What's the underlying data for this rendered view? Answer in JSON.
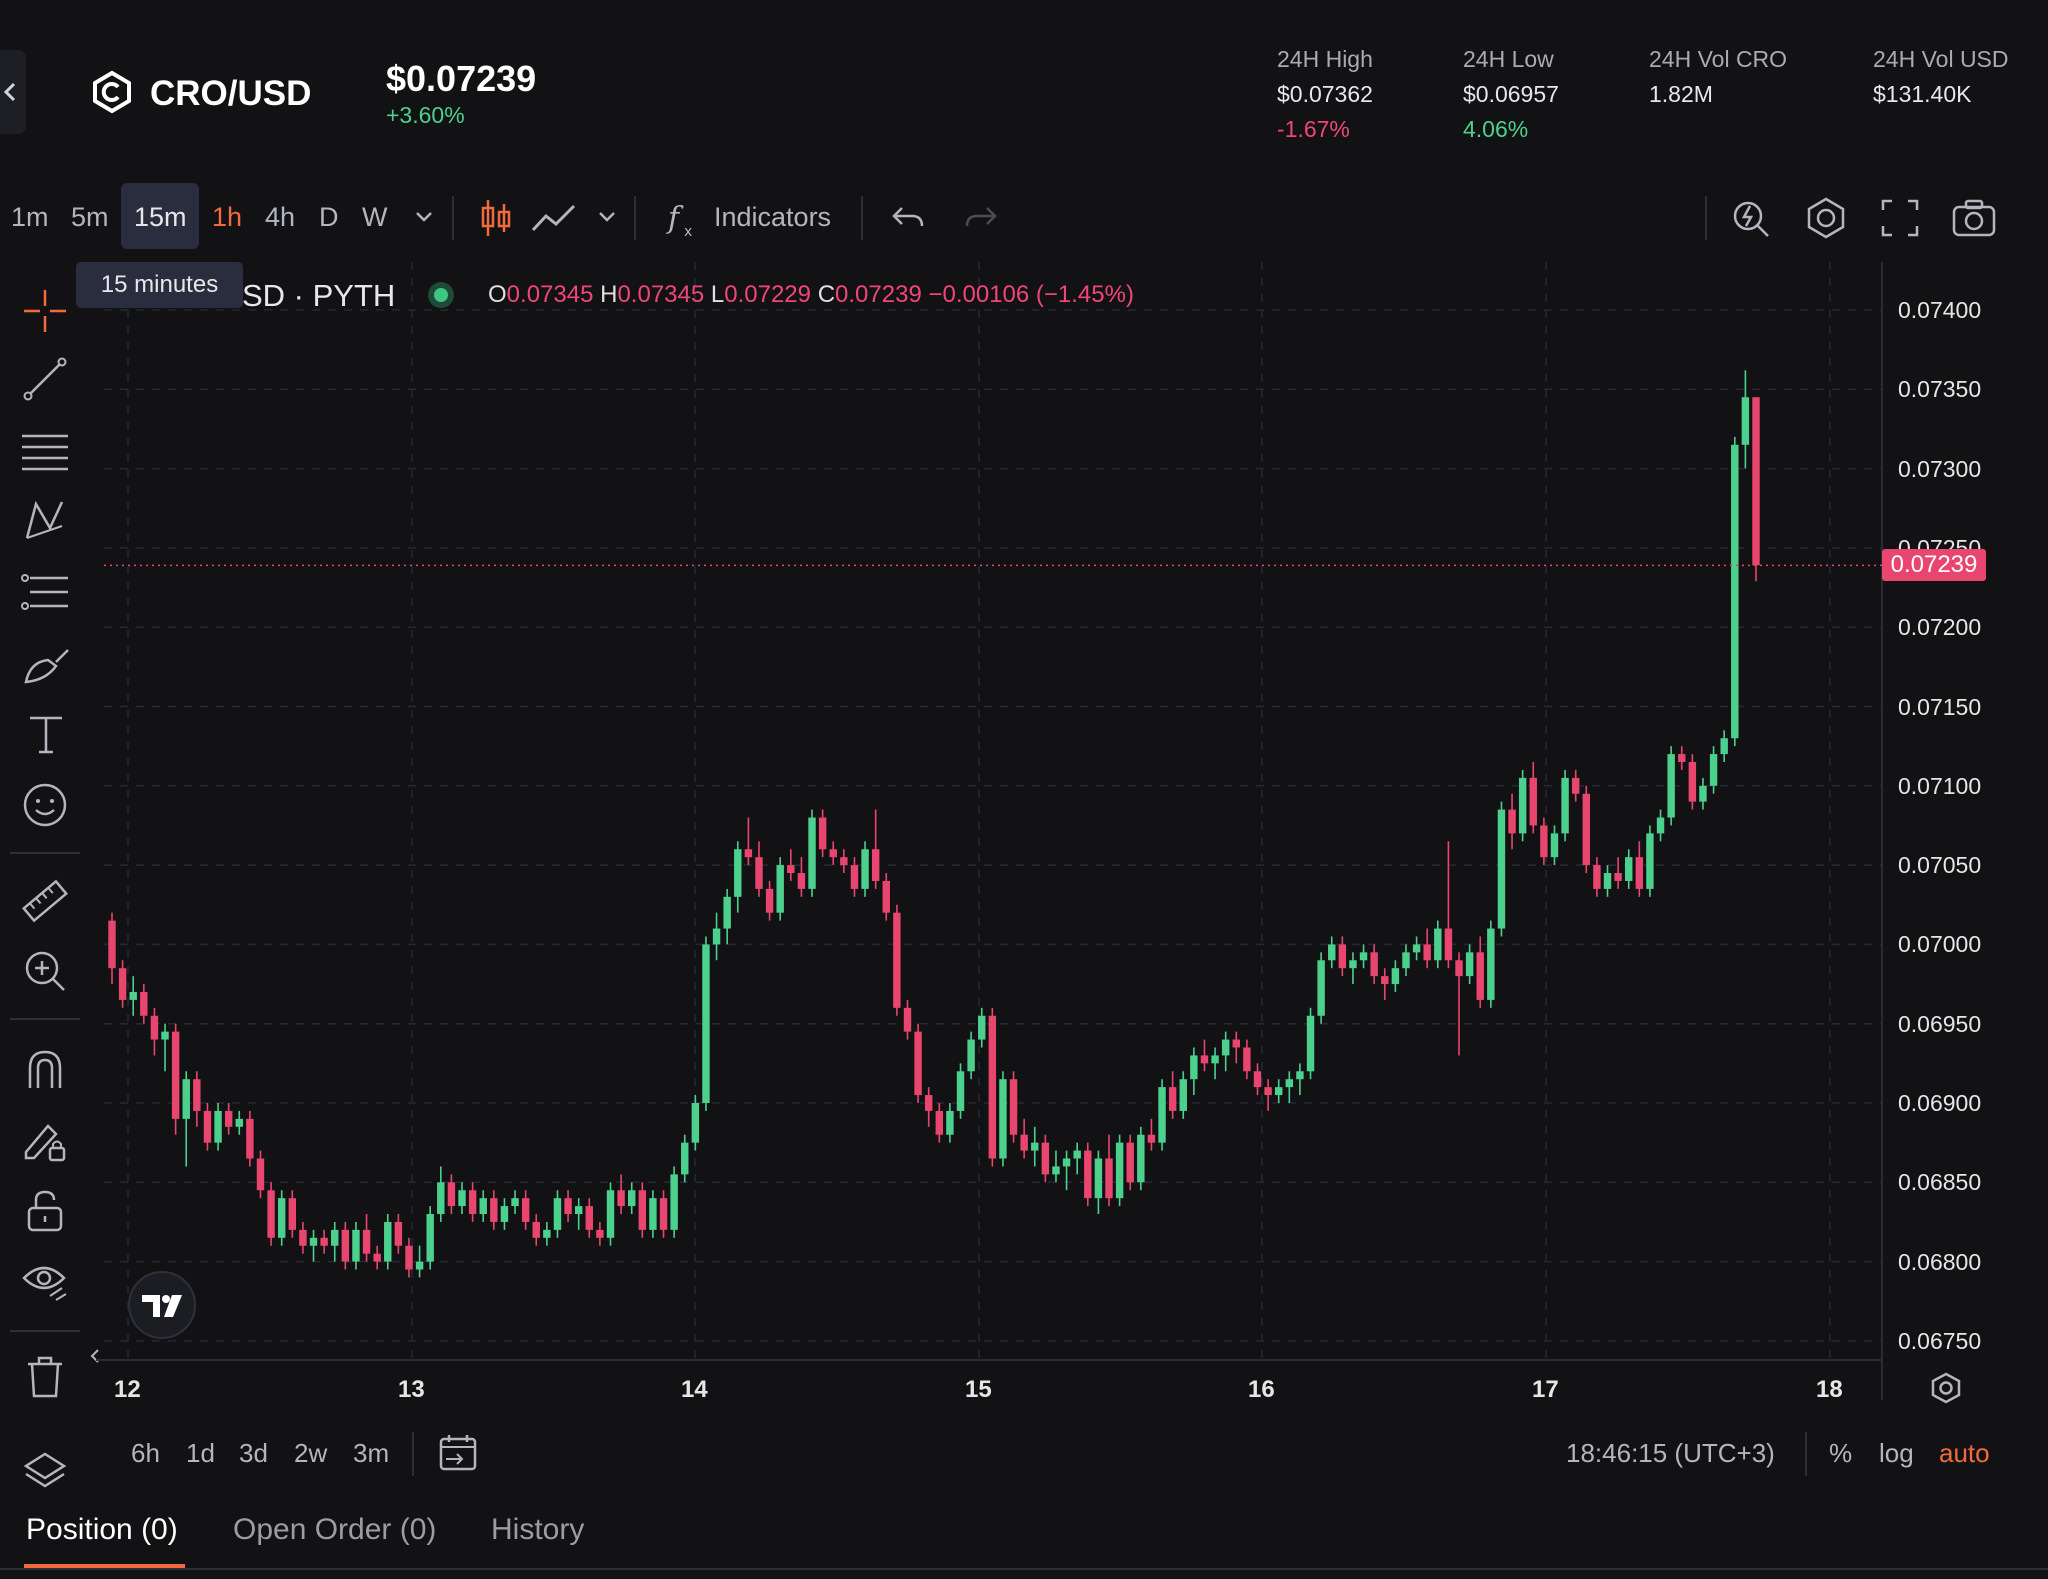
{
  "header": {
    "pair": "CRO/USD",
    "price": "$0.07239",
    "change": "+3.60%",
    "stats": [
      {
        "label": "24H High",
        "value": "$0.07362",
        "sub": "-1.67%"
      },
      {
        "label": "24H Low",
        "value": "$0.06957",
        "sub": "4.06%"
      },
      {
        "label": "24H Vol CRO",
        "value": "1.82M",
        "sub": ""
      },
      {
        "label": "24H Vol USD",
        "value": "$131.40K",
        "sub": ""
      }
    ]
  },
  "toolbar": {
    "timeframes": [
      "1m",
      "5m",
      "15m",
      "1h",
      "4h",
      "D",
      "W"
    ],
    "active_timeframe": "15m",
    "highlighted_timeframe": "1h",
    "indicators_label": "Indicators",
    "tooltip": "15 minutes"
  },
  "legend": {
    "symbol": "SD · PYTH",
    "o_label": "O",
    "o": "0.07345",
    "h_label": "H",
    "h": "0.07345",
    "l_label": "L",
    "l": "0.07229",
    "c_label": "C",
    "c": "0.07239",
    "change": "−0.00106 (−1.45%)"
  },
  "price_axis": {
    "ticks": [
      "0.07400",
      "0.07350",
      "0.07300",
      "0.07250",
      "0.07200",
      "0.07150",
      "0.07100",
      "0.07050",
      "0.07000",
      "0.06950",
      "0.06900",
      "0.06850",
      "0.06800",
      "0.06750"
    ],
    "current_price": "0.07239"
  },
  "time_axis": {
    "dates": [
      "12",
      "13",
      "14",
      "15",
      "16",
      "17",
      "18"
    ]
  },
  "bottom_bar": {
    "ranges": [
      "6h",
      "1d",
      "3d",
      "2w",
      "3m"
    ],
    "clock": "18:46:15 (UTC+3)",
    "percent": "%",
    "log": "log",
    "auto": "auto"
  },
  "tabs": {
    "position": "Position (0)",
    "open_order": "Open Order (0)",
    "history": "History"
  },
  "colors": {
    "up": "#4cd08e",
    "down": "#e8456f",
    "accent": "#f26a3d",
    "background": "#121214"
  },
  "chart_data": {
    "type": "candlestick",
    "ylim": [
      0.0675,
      0.0741
    ],
    "x_ticks": [
      "12",
      "13",
      "14",
      "15",
      "16",
      "17",
      "18"
    ],
    "candles": [
      [
        0.07015,
        0.0702,
        0.06975,
        0.06985
      ],
      [
        0.06985,
        0.0699,
        0.0696,
        0.06965
      ],
      [
        0.06965,
        0.0698,
        0.06955,
        0.0697
      ],
      [
        0.0697,
        0.06975,
        0.0695,
        0.06955
      ],
      [
        0.06955,
        0.0696,
        0.0693,
        0.0694
      ],
      [
        0.0694,
        0.0695,
        0.0692,
        0.06945
      ],
      [
        0.06945,
        0.0695,
        0.0688,
        0.0689
      ],
      [
        0.0689,
        0.0692,
        0.0686,
        0.06915
      ],
      [
        0.06915,
        0.0692,
        0.06885,
        0.06895
      ],
      [
        0.06895,
        0.069,
        0.0687,
        0.06875
      ],
      [
        0.06875,
        0.069,
        0.0687,
        0.06895
      ],
      [
        0.06895,
        0.069,
        0.0688,
        0.06885
      ],
      [
        0.06885,
        0.06895,
        0.0688,
        0.0689
      ],
      [
        0.0689,
        0.06895,
        0.0686,
        0.06865
      ],
      [
        0.06865,
        0.0687,
        0.0684,
        0.06845
      ],
      [
        0.06845,
        0.0685,
        0.0681,
        0.06815
      ],
      [
        0.06815,
        0.06845,
        0.0681,
        0.0684
      ],
      [
        0.0684,
        0.06845,
        0.06815,
        0.0682
      ],
      [
        0.0682,
        0.06825,
        0.06805,
        0.0681
      ],
      [
        0.0681,
        0.0682,
        0.068,
        0.06815
      ],
      [
        0.06815,
        0.0682,
        0.06805,
        0.0681
      ],
      [
        0.0681,
        0.06825,
        0.068,
        0.0682
      ],
      [
        0.0682,
        0.06825,
        0.06795,
        0.068
      ],
      [
        0.068,
        0.06825,
        0.06795,
        0.0682
      ],
      [
        0.0682,
        0.0683,
        0.068,
        0.06805
      ],
      [
        0.06805,
        0.0681,
        0.06795,
        0.068
      ],
      [
        0.068,
        0.0683,
        0.06795,
        0.06825
      ],
      [
        0.06825,
        0.0683,
        0.06805,
        0.0681
      ],
      [
        0.0681,
        0.06815,
        0.0679,
        0.06795
      ],
      [
        0.06795,
        0.0681,
        0.0679,
        0.068
      ],
      [
        0.068,
        0.06835,
        0.06795,
        0.0683
      ],
      [
        0.0683,
        0.0686,
        0.06825,
        0.0685
      ],
      [
        0.0685,
        0.06855,
        0.0683,
        0.06835
      ],
      [
        0.06835,
        0.0685,
        0.0683,
        0.06845
      ],
      [
        0.06845,
        0.0685,
        0.06825,
        0.0683
      ],
      [
        0.0683,
        0.06845,
        0.06825,
        0.0684
      ],
      [
        0.0684,
        0.06845,
        0.0682,
        0.06825
      ],
      [
        0.06825,
        0.0684,
        0.0682,
        0.06835
      ],
      [
        0.06835,
        0.06845,
        0.0683,
        0.0684
      ],
      [
        0.0684,
        0.06845,
        0.0682,
        0.06825
      ],
      [
        0.06825,
        0.0683,
        0.0681,
        0.06815
      ],
      [
        0.06815,
        0.06825,
        0.0681,
        0.0682
      ],
      [
        0.0682,
        0.06845,
        0.06815,
        0.0684
      ],
      [
        0.0684,
        0.06845,
        0.06825,
        0.0683
      ],
      [
        0.0683,
        0.0684,
        0.0682,
        0.06835
      ],
      [
        0.06835,
        0.0684,
        0.06815,
        0.0682
      ],
      [
        0.0682,
        0.06825,
        0.0681,
        0.06815
      ],
      [
        0.06815,
        0.0685,
        0.0681,
        0.06845
      ],
      [
        0.06845,
        0.06855,
        0.0683,
        0.06835
      ],
      [
        0.06835,
        0.0685,
        0.0683,
        0.06845
      ],
      [
        0.06845,
        0.0685,
        0.06815,
        0.0682
      ],
      [
        0.0682,
        0.06845,
        0.06815,
        0.0684
      ],
      [
        0.0684,
        0.06845,
        0.06815,
        0.0682
      ],
      [
        0.0682,
        0.0686,
        0.06815,
        0.06855
      ],
      [
        0.06855,
        0.0688,
        0.0685,
        0.06875
      ],
      [
        0.06875,
        0.06905,
        0.0687,
        0.069
      ],
      [
        0.069,
        0.07005,
        0.06895,
        0.07
      ],
      [
        0.07,
        0.0702,
        0.0699,
        0.0701
      ],
      [
        0.0701,
        0.07035,
        0.07,
        0.0703
      ],
      [
        0.0703,
        0.07065,
        0.0702,
        0.0706
      ],
      [
        0.0706,
        0.0708,
        0.0705,
        0.07055
      ],
      [
        0.07055,
        0.07065,
        0.0703,
        0.07035
      ],
      [
        0.07035,
        0.0704,
        0.07015,
        0.0702
      ],
      [
        0.0702,
        0.07055,
        0.07015,
        0.0705
      ],
      [
        0.0705,
        0.0706,
        0.0704,
        0.07045
      ],
      [
        0.07045,
        0.07055,
        0.0703,
        0.07035
      ],
      [
        0.07035,
        0.07085,
        0.0703,
        0.0708
      ],
      [
        0.0708,
        0.07085,
        0.07055,
        0.0706
      ],
      [
        0.0706,
        0.07065,
        0.0705,
        0.07055
      ],
      [
        0.07055,
        0.0706,
        0.07045,
        0.0705
      ],
      [
        0.0705,
        0.07055,
        0.0703,
        0.07035
      ],
      [
        0.07035,
        0.07065,
        0.0703,
        0.0706
      ],
      [
        0.0706,
        0.07085,
        0.07035,
        0.0704
      ],
      [
        0.0704,
        0.07045,
        0.07015,
        0.0702
      ],
      [
        0.0702,
        0.07025,
        0.06955,
        0.0696
      ],
      [
        0.0696,
        0.06965,
        0.0694,
        0.06945
      ],
      [
        0.06945,
        0.0695,
        0.069,
        0.06905
      ],
      [
        0.06905,
        0.0691,
        0.06885,
        0.06895
      ],
      [
        0.06895,
        0.069,
        0.06875,
        0.0688
      ],
      [
        0.0688,
        0.069,
        0.06875,
        0.06895
      ],
      [
        0.06895,
        0.06925,
        0.0689,
        0.0692
      ],
      [
        0.0692,
        0.06945,
        0.06915,
        0.0694
      ],
      [
        0.0694,
        0.0696,
        0.06935,
        0.06955
      ],
      [
        0.06955,
        0.0696,
        0.0686,
        0.06865
      ],
      [
        0.06865,
        0.0692,
        0.0686,
        0.06915
      ],
      [
        0.06915,
        0.0692,
        0.06875,
        0.0688
      ],
      [
        0.0688,
        0.0689,
        0.06865,
        0.0687
      ],
      [
        0.0687,
        0.06885,
        0.0686,
        0.06875
      ],
      [
        0.06875,
        0.0688,
        0.0685,
        0.06855
      ],
      [
        0.06855,
        0.0687,
        0.0685,
        0.0686
      ],
      [
        0.0686,
        0.0687,
        0.06845,
        0.06865
      ],
      [
        0.06865,
        0.06875,
        0.06855,
        0.0687
      ],
      [
        0.0687,
        0.06875,
        0.06835,
        0.0684
      ],
      [
        0.0684,
        0.0687,
        0.0683,
        0.06865
      ],
      [
        0.06865,
        0.0688,
        0.06835,
        0.0684
      ],
      [
        0.0684,
        0.0688,
        0.06835,
        0.06875
      ],
      [
        0.06875,
        0.0688,
        0.06845,
        0.0685
      ],
      [
        0.0685,
        0.06885,
        0.06845,
        0.0688
      ],
      [
        0.0688,
        0.0689,
        0.0687,
        0.06875
      ],
      [
        0.06875,
        0.06915,
        0.0687,
        0.0691
      ],
      [
        0.0691,
        0.0692,
        0.0689,
        0.06895
      ],
      [
        0.06895,
        0.0692,
        0.0689,
        0.06915
      ],
      [
        0.06915,
        0.06935,
        0.06905,
        0.0693
      ],
      [
        0.0693,
        0.0694,
        0.0692,
        0.06925
      ],
      [
        0.06925,
        0.06935,
        0.06915,
        0.0693
      ],
      [
        0.0693,
        0.06945,
        0.0692,
        0.0694
      ],
      [
        0.0694,
        0.06945,
        0.06925,
        0.06935
      ],
      [
        0.06935,
        0.0694,
        0.06915,
        0.0692
      ],
      [
        0.0692,
        0.06925,
        0.06905,
        0.0691
      ],
      [
        0.0691,
        0.06915,
        0.06895,
        0.06905
      ],
      [
        0.06905,
        0.06915,
        0.069,
        0.0691
      ],
      [
        0.0691,
        0.0692,
        0.069,
        0.06915
      ],
      [
        0.06915,
        0.06925,
        0.06905,
        0.0692
      ],
      [
        0.0692,
        0.0696,
        0.06915,
        0.06955
      ],
      [
        0.06955,
        0.06995,
        0.0695,
        0.0699
      ],
      [
        0.0699,
        0.07005,
        0.06985,
        0.07
      ],
      [
        0.07,
        0.07005,
        0.0698,
        0.06985
      ],
      [
        0.06985,
        0.06995,
        0.06975,
        0.0699
      ],
      [
        0.0699,
        0.07,
        0.06985,
        0.06995
      ],
      [
        0.06995,
        0.07,
        0.06975,
        0.0698
      ],
      [
        0.0698,
        0.06985,
        0.06965,
        0.06975
      ],
      [
        0.06975,
        0.0699,
        0.0697,
        0.06985
      ],
      [
        0.06985,
        0.07,
        0.0698,
        0.06995
      ],
      [
        0.06995,
        0.07005,
        0.0699,
        0.07
      ],
      [
        0.07,
        0.0701,
        0.06985,
        0.0699
      ],
      [
        0.0699,
        0.07015,
        0.06985,
        0.0701
      ],
      [
        0.0701,
        0.07065,
        0.06985,
        0.0699
      ],
      [
        0.0699,
        0.06995,
        0.0693,
        0.0698
      ],
      [
        0.0698,
        0.07,
        0.06975,
        0.06995
      ],
      [
        0.06995,
        0.07005,
        0.0696,
        0.06965
      ],
      [
        0.06965,
        0.07015,
        0.0696,
        0.0701
      ],
      [
        0.0701,
        0.0709,
        0.07005,
        0.07085
      ],
      [
        0.07085,
        0.07095,
        0.0706,
        0.0707
      ],
      [
        0.0707,
        0.0711,
        0.07065,
        0.07105
      ],
      [
        0.07105,
        0.07115,
        0.0707,
        0.07075
      ],
      [
        0.07075,
        0.0708,
        0.0705,
        0.07055
      ],
      [
        0.07055,
        0.07075,
        0.0705,
        0.0707
      ],
      [
        0.0707,
        0.0711,
        0.07065,
        0.07105
      ],
      [
        0.07105,
        0.0711,
        0.0709,
        0.07095
      ],
      [
        0.07095,
        0.071,
        0.07045,
        0.0705
      ],
      [
        0.0705,
        0.07055,
        0.0703,
        0.07035
      ],
      [
        0.07035,
        0.0705,
        0.0703,
        0.07045
      ],
      [
        0.07045,
        0.07055,
        0.07035,
        0.0704
      ],
      [
        0.0704,
        0.0706,
        0.07035,
        0.07055
      ],
      [
        0.07055,
        0.07065,
        0.0703,
        0.07035
      ],
      [
        0.07035,
        0.07075,
        0.0703,
        0.0707
      ],
      [
        0.0707,
        0.07085,
        0.07065,
        0.0708
      ],
      [
        0.0708,
        0.07125,
        0.07075,
        0.0712
      ],
      [
        0.0712,
        0.07125,
        0.0711,
        0.07115
      ],
      [
        0.07115,
        0.0712,
        0.07085,
        0.0709
      ],
      [
        0.0709,
        0.07105,
        0.07085,
        0.071
      ],
      [
        0.071,
        0.07125,
        0.07095,
        0.0712
      ],
      [
        0.0712,
        0.07135,
        0.07115,
        0.0713
      ],
      [
        0.0713,
        0.0732,
        0.07125,
        0.07315
      ],
      [
        0.07315,
        0.07362,
        0.073,
        0.07345
      ],
      [
        0.07345,
        0.07345,
        0.07229,
        0.07239
      ]
    ]
  }
}
